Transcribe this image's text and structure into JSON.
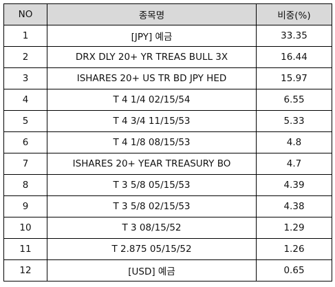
{
  "table": {
    "headers": {
      "no": "NO",
      "name": "종목명",
      "weight": "비중(%)"
    },
    "rows": [
      {
        "no": "1",
        "name": "[JPY] 예금",
        "weight": "33.35"
      },
      {
        "no": "2",
        "name": "DRX DLY 20+ YR TREAS BULL 3X",
        "weight": "16.44"
      },
      {
        "no": "3",
        "name": "ISHARES 20+ US TR BD JPY HED",
        "weight": "15.97"
      },
      {
        "no": "4",
        "name": "T 4 1/4 02/15/54",
        "weight": "6.55"
      },
      {
        "no": "5",
        "name": "T 4 3/4 11/15/53",
        "weight": "5.33"
      },
      {
        "no": "6",
        "name": "T 4 1/8 08/15/53",
        "weight": "4.8"
      },
      {
        "no": "7",
        "name": "ISHARES 20+ YEAR TREASURY BO",
        "weight": "4.7"
      },
      {
        "no": "8",
        "name": "T 3 5/8 05/15/53",
        "weight": "4.39"
      },
      {
        "no": "9",
        "name": "T 3 5/8 02/15/53",
        "weight": "4.38"
      },
      {
        "no": "10",
        "name": "T 3 08/15/52",
        "weight": "1.29"
      },
      {
        "no": "11",
        "name": "T 2.875 05/15/52",
        "weight": "1.26"
      },
      {
        "no": "12",
        "name": "[USD] 예금",
        "weight": "0.65"
      }
    ]
  }
}
